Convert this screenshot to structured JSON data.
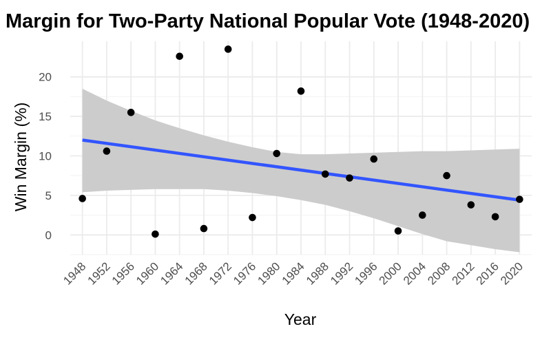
{
  "chart_data": {
    "type": "scatter",
    "title": "Margin for Two-Party National Popular Vote (1948-2020)",
    "xlabel": "Year",
    "ylabel": "Win Margin (%)",
    "x_ticks": [
      1948,
      1952,
      1956,
      1960,
      1964,
      1968,
      1972,
      1976,
      1980,
      1984,
      1988,
      1992,
      1996,
      2000,
      2004,
      2008,
      2012,
      2016,
      2020
    ],
    "y_ticks": [
      0,
      5,
      10,
      15,
      20
    ],
    "xlim": [
      1946.0,
      2022.0
    ],
    "ylim": [
      -2.5,
      24.5
    ],
    "grid": true,
    "points": {
      "x": [
        1948,
        1952,
        1956,
        1960,
        1964,
        1968,
        1972,
        1976,
        1980,
        1984,
        1988,
        1992,
        1996,
        2000,
        2004,
        2008,
        2012,
        2016,
        2020
      ],
      "y": [
        4.6,
        10.6,
        15.5,
        0.1,
        22.6,
        0.8,
        23.5,
        2.2,
        10.3,
        18.2,
        7.7,
        7.2,
        9.6,
        0.5,
        2.5,
        7.5,
        3.8,
        2.3,
        4.5
      ]
    },
    "trend_line": {
      "x": [
        1948,
        2020
      ],
      "y": [
        12.0,
        4.4
      ],
      "color": "#3355ff"
    },
    "confidence_band": {
      "x": [
        1948,
        1952,
        1956,
        1960,
        1964,
        1968,
        1972,
        1976,
        1980,
        1984,
        1988,
        1992,
        1996,
        2000,
        2004,
        2008,
        2012,
        2016,
        2020
      ],
      "upper": [
        18.5,
        17.0,
        15.7,
        14.5,
        13.5,
        12.6,
        11.8,
        11.1,
        10.5,
        10.2,
        10.2,
        10.3,
        10.4,
        10.5,
        10.6,
        10.6,
        10.7,
        10.8,
        10.9
      ],
      "lower": [
        5.4,
        5.6,
        5.7,
        5.8,
        5.8,
        5.8,
        5.6,
        5.3,
        4.9,
        4.4,
        3.8,
        3.0,
        2.1,
        1.1,
        0.1,
        -0.8,
        -1.3,
        -1.8,
        -2.2
      ],
      "color": "#cccccc"
    },
    "point_color": "#000000"
  }
}
